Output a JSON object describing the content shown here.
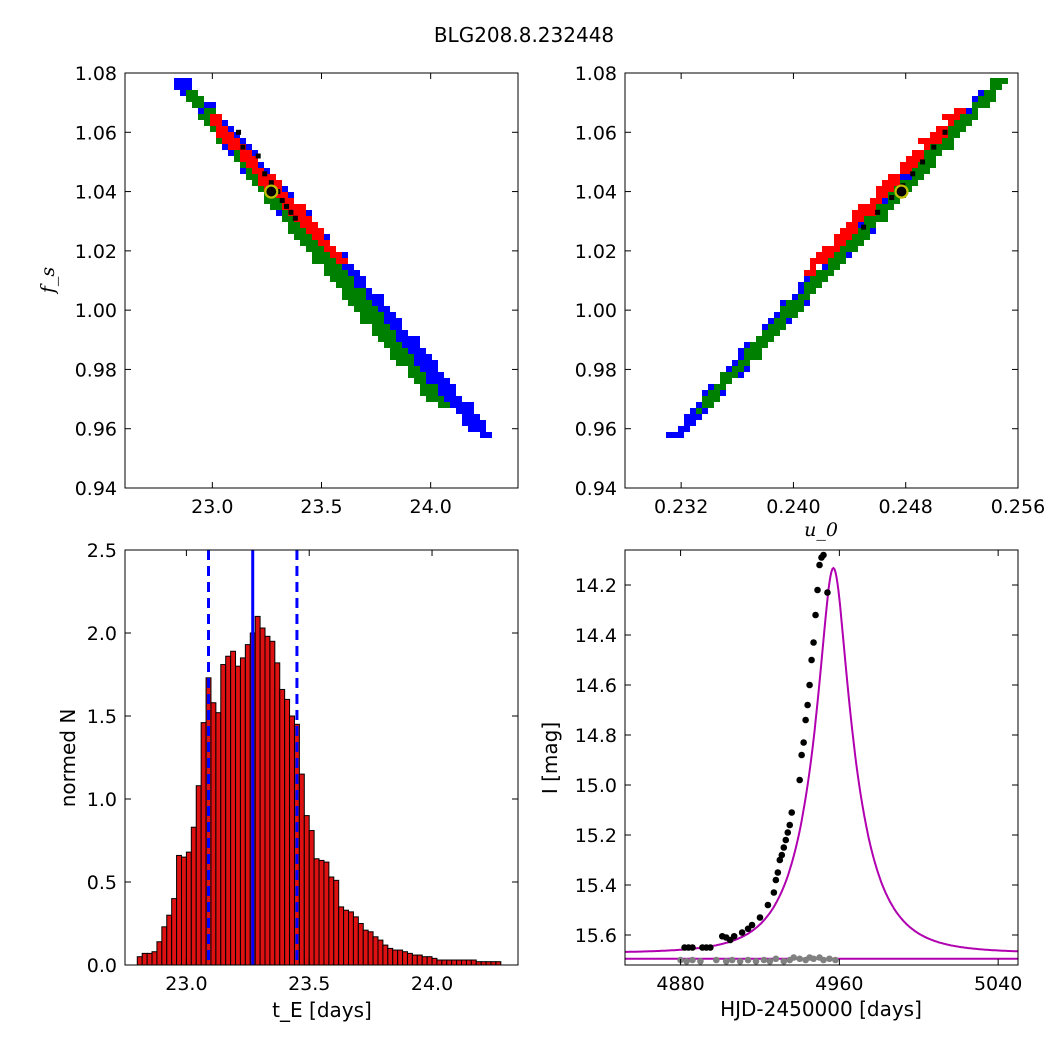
{
  "suptitle": "BLG208.8.232448",
  "colors": {
    "sigma3": "#0000ff",
    "sigma2": "#008000",
    "sigma1": "#ff0000",
    "chain_points": "#000000",
    "best_marker_edge": "#bfbf00",
    "hist_bar": "#dd1111",
    "hist_line": "#0000ff",
    "model_curve": "#b000b0",
    "ogle_data": "#000000",
    "baseline_data": "#808080"
  },
  "chart_data": [
    {
      "id": "tE_fs_density",
      "type": "heatmap",
      "xlabel": "",
      "ylabel": "f_s",
      "xlim": [
        22.6,
        24.4
      ],
      "ylim": [
        0.94,
        1.08
      ],
      "xticks": [
        23.0,
        23.5,
        24.0
      ],
      "xticklabels": [
        "23.0",
        "23.5",
        "24.0"
      ],
      "yticks": [
        0.94,
        0.96,
        0.98,
        1.0,
        1.02,
        1.04,
        1.06,
        1.08
      ],
      "yticklabels": [
        "0.94",
        "0.96",
        "0.98",
        "1.00",
        "1.02",
        "1.04",
        "1.06",
        "1.08"
      ],
      "confidence_bands": {
        "sigma3": {
          "color": "#0000ff",
          "from": [
            22.85,
            1.078
          ],
          "to": [
            24.25,
            0.958
          ],
          "width": 0.16
        },
        "sigma2": {
          "color": "#008000",
          "from": [
            22.9,
            1.074
          ],
          "to": [
            24.05,
            0.968
          ],
          "width": 0.11
        },
        "sigma1": {
          "color": "#ff0000",
          "from": [
            23.0,
            1.065
          ],
          "to": [
            23.6,
            1.016
          ],
          "width": 0.065
        }
      },
      "chain_points": [
        [
          23.12,
          1.06
        ],
        [
          23.14,
          1.055
        ],
        [
          23.21,
          1.052
        ],
        [
          23.24,
          1.046
        ],
        [
          23.27,
          1.043
        ],
        [
          23.3,
          1.04
        ],
        [
          23.32,
          1.037
        ],
        [
          23.34,
          1.035
        ],
        [
          23.36,
          1.033
        ],
        [
          23.38,
          1.031
        ]
      ],
      "best_fit": [
        23.27,
        1.04
      ]
    },
    {
      "id": "u0_fs_density",
      "type": "heatmap",
      "xlabel": "u_0",
      "ylabel": "",
      "xlim": [
        0.228,
        0.256
      ],
      "ylim": [
        0.94,
        1.08
      ],
      "xticks": [
        0.232,
        0.24,
        0.248,
        0.256
      ],
      "xticklabels": [
        "0.232",
        "0.240",
        "0.248",
        "0.256"
      ],
      "yticks": [
        0.94,
        0.96,
        0.98,
        1.0,
        1.02,
        1.04,
        1.06,
        1.08
      ],
      "yticklabels": [
        "0.94",
        "0.96",
        "0.98",
        "1.00",
        "1.02",
        "1.04",
        "1.06",
        "1.08"
      ],
      "confidence_bands": {
        "sigma3": {
          "color": "#0000ff",
          "from": [
            0.2315,
            0.957
          ],
          "to": [
            0.255,
            1.079
          ],
          "width": 0.0016
        },
        "sigma2": {
          "color": "#008000",
          "from": [
            0.2333,
            0.966
          ],
          "to": [
            0.255,
            1.078
          ],
          "width": 0.0011
        },
        "sigma1": {
          "color": "#ff0000",
          "from": [
            0.241,
            1.012
          ],
          "to": [
            0.252,
            1.068
          ],
          "width": 0.0007
        }
      },
      "chain_points": [
        [
          0.245,
          1.028
        ],
        [
          0.246,
          1.033
        ],
        [
          0.247,
          1.038
        ],
        [
          0.2478,
          1.042
        ],
        [
          0.2485,
          1.046
        ],
        [
          0.2492,
          1.05
        ],
        [
          0.25,
          1.055
        ],
        [
          0.2508,
          1.06
        ]
      ],
      "best_fit": [
        0.2477,
        1.04
      ]
    },
    {
      "id": "tE_histogram",
      "type": "bar",
      "xlabel": "t_E",
      "xlabel_suffix": " [days]",
      "ylabel": "normed N",
      "xlim": [
        22.75,
        24.35
      ],
      "ylim": [
        0.0,
        2.5
      ],
      "xticks": [
        23.0,
        23.5,
        24.0
      ],
      "xticklabels": [
        "23.0",
        "23.5",
        "24.0"
      ],
      "yticks": [
        0.0,
        0.5,
        1.0,
        1.5,
        2.0,
        2.5
      ],
      "yticklabels": [
        "0.0",
        "0.5",
        "1.0",
        "1.5",
        "2.0",
        "2.5"
      ],
      "bin_start": 22.8,
      "bin_width": 0.02,
      "values": [
        0.05,
        0.07,
        0.07,
        0.08,
        0.14,
        0.23,
        0.3,
        0.4,
        0.66,
        0.65,
        0.68,
        0.83,
        1.08,
        1.46,
        1.73,
        1.58,
        1.52,
        1.81,
        1.86,
        1.89,
        1.8,
        1.85,
        1.93,
        2.0,
        2.1,
        2.03,
        1.98,
        1.95,
        1.82,
        1.66,
        1.6,
        1.5,
        1.45,
        1.15,
        0.9,
        0.81,
        0.64,
        0.63,
        0.62,
        0.53,
        0.51,
        0.35,
        0.33,
        0.32,
        0.29,
        0.25,
        0.21,
        0.2,
        0.17,
        0.15,
        0.12,
        0.1,
        0.09,
        0.09,
        0.08,
        0.07,
        0.06,
        0.06,
        0.05,
        0.05,
        0.04,
        0.03,
        0.03,
        0.03,
        0.03,
        0.03,
        0.03,
        0.03,
        0.03,
        0.02,
        0.02,
        0.02,
        0.02,
        0.02
      ],
      "median": 23.27,
      "lower_bound": 23.09,
      "upper_bound": 23.45
    },
    {
      "id": "light_curve",
      "type": "scatter",
      "xlabel": "HJD-2450000 [days]",
      "ylabel": "I [mag]",
      "xlim": [
        4852,
        5050
      ],
      "ylim": [
        15.72,
        14.06
      ],
      "xticks": [
        4880,
        4960,
        5040
      ],
      "xticklabels": [
        "4880",
        "4960",
        "5040"
      ],
      "yticks": [
        14.2,
        14.4,
        14.6,
        14.8,
        15.0,
        15.2,
        15.4,
        15.6
      ],
      "yticklabels": [
        "14.2",
        "14.4",
        "14.6",
        "14.8",
        "15.0",
        "15.2",
        "15.4",
        "15.6"
      ],
      "model": {
        "t0": 4957.0,
        "tE": 23.27,
        "u0": 0.2477,
        "baseline_mag": 15.672,
        "offset_mag": 0.175
      },
      "residual_line_mag": 15.695,
      "event_points": [
        [
          4882,
          15.65
        ],
        [
          4884,
          15.65
        ],
        [
          4886,
          15.65
        ],
        [
          4891,
          15.65
        ],
        [
          4893,
          15.65
        ],
        [
          4895,
          15.65
        ],
        [
          4901,
          15.605
        ],
        [
          4903,
          15.61
        ],
        [
          4905,
          15.62
        ],
        [
          4907,
          15.605
        ],
        [
          4911,
          15.59
        ],
        [
          4914,
          15.575
        ],
        [
          4916,
          15.56
        ],
        [
          4920,
          15.53
        ],
        [
          4924,
          15.48
        ],
        [
          4927,
          15.43
        ],
        [
          4928,
          15.38
        ],
        [
          4929,
          15.35
        ],
        [
          4930,
          15.3
        ],
        [
          4931,
          15.28
        ],
        [
          4932,
          15.25
        ],
        [
          4933,
          15.22
        ],
        [
          4934,
          15.19
        ],
        [
          4935,
          15.16
        ],
        [
          4936,
          15.11
        ],
        [
          4940,
          14.98
        ],
        [
          4941,
          14.88
        ],
        [
          4942,
          14.83
        ],
        [
          4943,
          14.74
        ],
        [
          4944,
          14.68
        ],
        [
          4945,
          14.6
        ],
        [
          4946,
          14.5
        ],
        [
          4947,
          14.43
        ],
        [
          4948,
          14.32
        ],
        [
          4949,
          14.22
        ],
        [
          4950,
          14.12
        ],
        [
          4951,
          14.09
        ],
        [
          4952,
          14.08
        ],
        [
          4954,
          14.23
        ]
      ],
      "baseline_points": [
        [
          4880,
          15.7
        ],
        [
          4883,
          15.705
        ],
        [
          4886,
          15.7
        ],
        [
          4890,
          15.705
        ],
        [
          4898,
          15.7
        ],
        [
          4903,
          15.705
        ],
        [
          4906,
          15.7
        ],
        [
          4910,
          15.705
        ],
        [
          4914,
          15.7
        ],
        [
          4918,
          15.705
        ],
        [
          4922,
          15.7
        ],
        [
          4925,
          15.705
        ],
        [
          4928,
          15.695
        ],
        [
          4932,
          15.705
        ],
        [
          4935,
          15.7
        ],
        [
          4937,
          15.69
        ],
        [
          4940,
          15.695
        ],
        [
          4943,
          15.7
        ],
        [
          4945,
          15.69
        ],
        [
          4947,
          15.695
        ],
        [
          4950,
          15.69
        ],
        [
          4952,
          15.7
        ],
        [
          4955,
          15.695
        ],
        [
          4958,
          15.7
        ]
      ]
    }
  ]
}
